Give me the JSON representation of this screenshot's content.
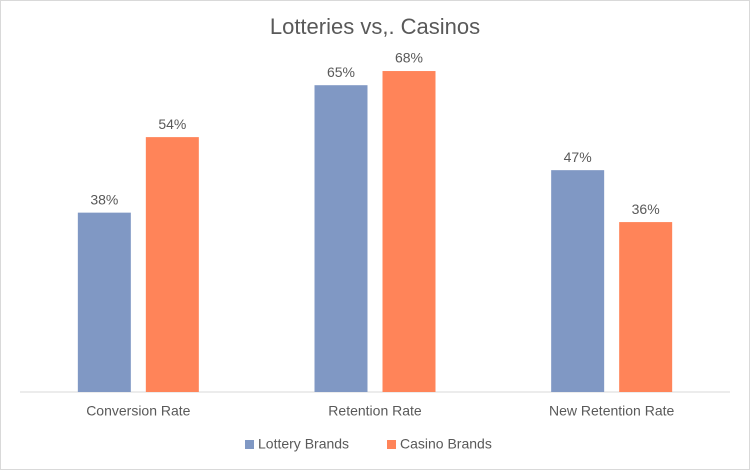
{
  "chart_data": {
    "type": "bar",
    "title": "Lotteries vs,. Casinos",
    "categories": [
      "Conversion Rate",
      "Retention Rate",
      "New Retention Rate"
    ],
    "series": [
      {
        "name": "Lottery Brands",
        "color": "#8098c4",
        "values": [
          38,
          65,
          47
        ],
        "value_labels": [
          "38%",
          "65%",
          "47%"
        ]
      },
      {
        "name": "Casino Brands",
        "color": "#ff8459",
        "values": [
          54,
          68,
          36
        ],
        "value_labels": [
          "54%",
          "68%",
          "36%"
        ]
      }
    ],
    "legend": "bottom"
  }
}
